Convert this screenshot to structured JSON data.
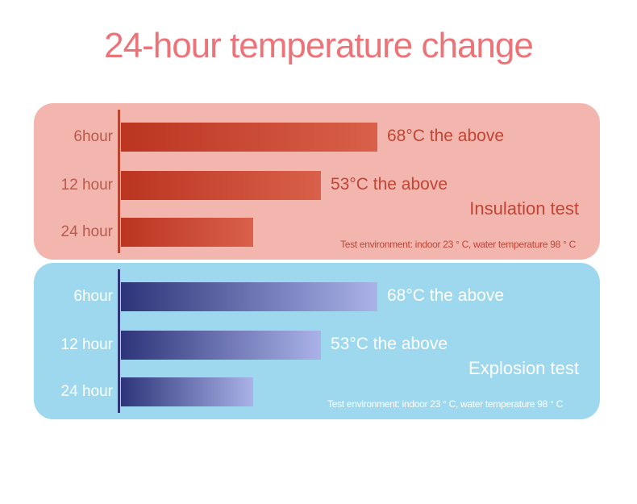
{
  "chart_data": {
    "title": "24-hour temperature change",
    "type": "bar",
    "orientation": "horizontal",
    "charts": [
      {
        "id": "insulation",
        "label": "Insulation test",
        "note": "Test environment: indoor 23 ° C, water temperature 98 ° C",
        "categories": [
          "6hour",
          "12 hour",
          "24 hour"
        ],
        "values": [
          68,
          53,
          35
        ],
        "value_labels": [
          "68°C the above",
          "53°C the above",
          ""
        ],
        "color": "#bb3520"
      },
      {
        "id": "explosion",
        "label": "Explosion test",
        "note": "Test environment: indoor 23 ° C, water temperature 98 ° C",
        "categories": [
          "6hour",
          "12 hour",
          "24 hour"
        ],
        "values": [
          68,
          53,
          35
        ],
        "value_labels": [
          "68°C the above",
          "53°C the above",
          ""
        ],
        "color": "#2d3479"
      }
    ]
  }
}
